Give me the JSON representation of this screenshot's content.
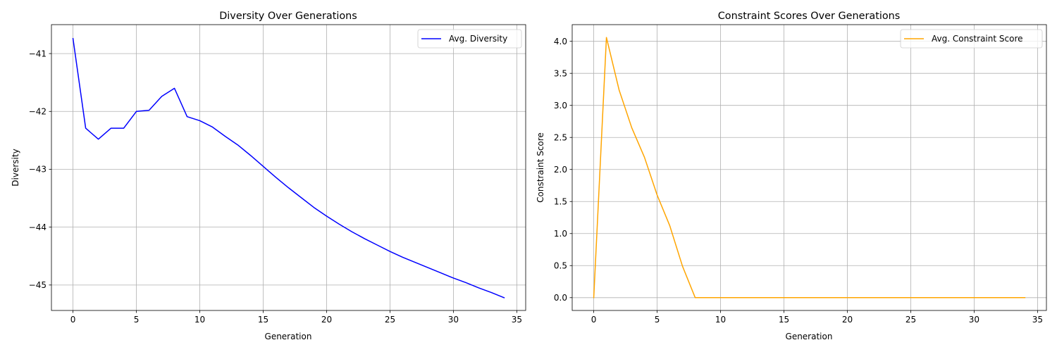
{
  "chart_data": [
    {
      "type": "line",
      "title": "Diversity Over Generations",
      "xlabel": "Generation",
      "ylabel": "Diversity",
      "xlim": [
        -1.7,
        35.7
      ],
      "ylim": [
        -45.44,
        -40.5
      ],
      "xticks": [
        0,
        5,
        10,
        15,
        20,
        25,
        30,
        35
      ],
      "yticks": [
        -45,
        -44,
        -43,
        -42,
        -41
      ],
      "ytick_labels": [
        "−45",
        "−44",
        "−43",
        "−42",
        "−41"
      ],
      "grid": true,
      "legend_position": "top-right",
      "color": "#0000ff",
      "series": [
        {
          "name": "Avg. Diversity",
          "x": [
            0,
            1,
            2,
            3,
            4,
            5,
            6,
            7,
            8,
            9,
            10,
            11,
            12,
            13,
            14,
            15,
            16,
            17,
            18,
            19,
            20,
            21,
            22,
            23,
            24,
            25,
            26,
            27,
            28,
            29,
            30,
            31,
            32,
            33,
            34
          ],
          "y": [
            -40.74,
            -42.29,
            -42.48,
            -42.29,
            -42.29,
            -42.0,
            -41.98,
            -41.74,
            -41.6,
            -42.09,
            -42.16,
            -42.27,
            -42.43,
            -42.58,
            -42.76,
            -42.95,
            -43.14,
            -43.32,
            -43.49,
            -43.66,
            -43.81,
            -43.95,
            -44.08,
            -44.2,
            -44.31,
            -44.42,
            -44.52,
            -44.61,
            -44.7,
            -44.79,
            -44.88,
            -44.96,
            -45.05,
            -45.13,
            -45.22
          ]
        }
      ]
    },
    {
      "type": "line",
      "title": "Constraint Scores Over Generations",
      "xlabel": "Generation",
      "ylabel": "Constraint Score",
      "xlim": [
        -1.7,
        35.7
      ],
      "ylim": [
        -0.2,
        4.26
      ],
      "xticks": [
        0,
        5,
        10,
        15,
        20,
        25,
        30,
        35
      ],
      "yticks": [
        0.0,
        0.5,
        1.0,
        1.5,
        2.0,
        2.5,
        3.0,
        3.5,
        4.0
      ],
      "ytick_labels": [
        "0.0",
        "0.5",
        "1.0",
        "1.5",
        "2.0",
        "2.5",
        "3.0",
        "3.5",
        "4.0"
      ],
      "grid": true,
      "legend_position": "top-right",
      "color": "#ffa500",
      "series": [
        {
          "name": "Avg. Constraint Score",
          "x": [
            0,
            1,
            2,
            3,
            4,
            5,
            6,
            7,
            8,
            9,
            10,
            11,
            12,
            13,
            14,
            15,
            16,
            17,
            18,
            19,
            20,
            21,
            22,
            23,
            24,
            25,
            26,
            27,
            28,
            29,
            30,
            31,
            32,
            33,
            34
          ],
          "y": [
            0.0,
            4.06,
            3.24,
            2.65,
            2.19,
            1.6,
            1.12,
            0.49,
            0.0,
            0.0,
            0.0,
            0.0,
            0.0,
            0.0,
            0.0,
            0.0,
            0.0,
            0.0,
            0.0,
            0.0,
            0.0,
            0.0,
            0.0,
            0.0,
            0.0,
            0.0,
            0.0,
            0.0,
            0.0,
            0.0,
            0.0,
            0.0,
            0.0,
            0.0,
            0.0
          ]
        }
      ]
    }
  ]
}
